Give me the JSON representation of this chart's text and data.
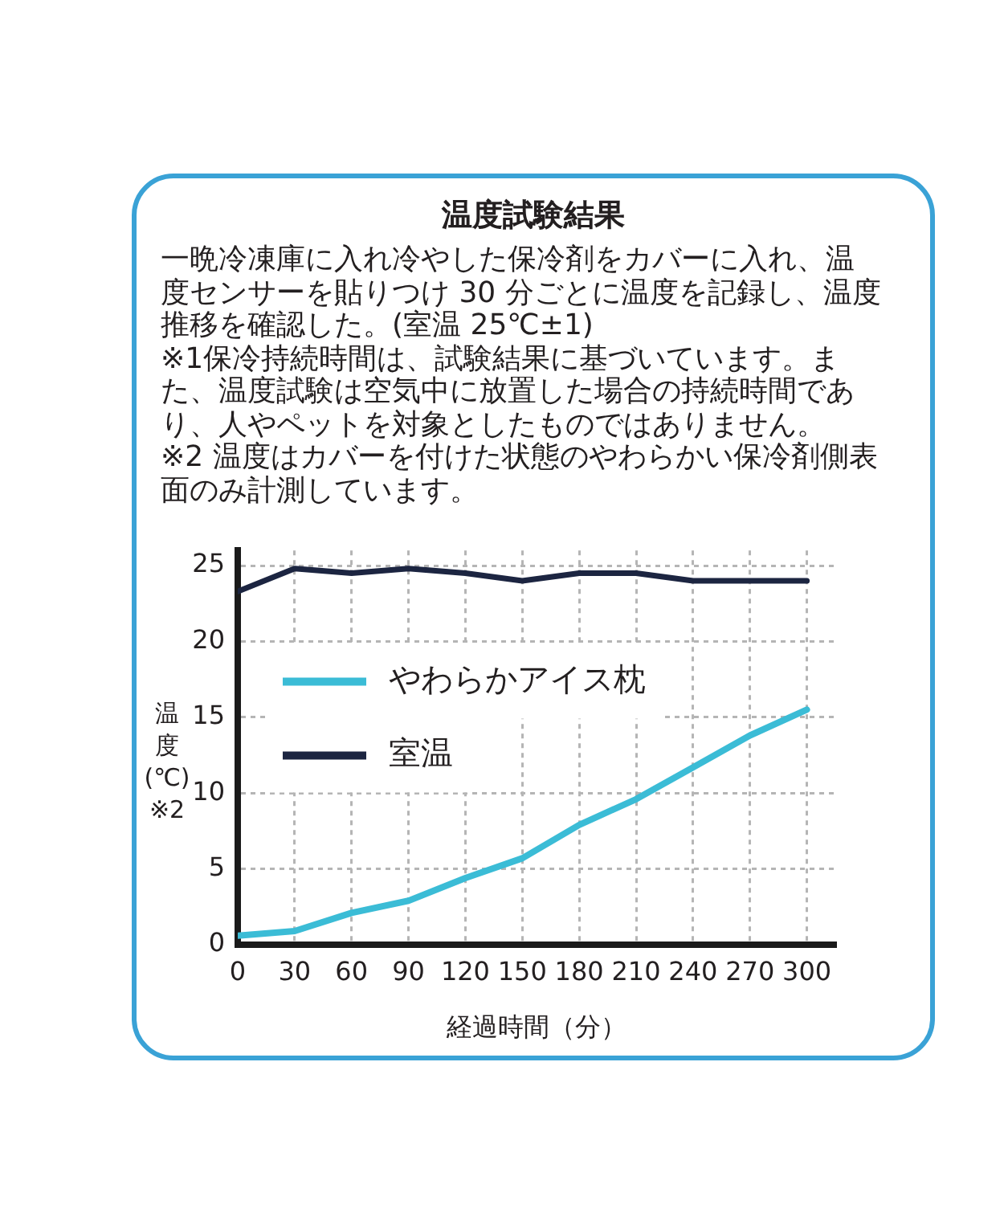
{
  "chart_data": {
    "type": "line",
    "title": "温度試験結果",
    "annotations": [
      "一晩冷凍庫に入れ冷やした保冷剤をカバーに入れ、温度センサーを貼りつけ 30 分ごとに温度を記録し、温度推移を確認した。(室温 25℃±1)",
      "※1保冷持続時間は、試験結果に基づいています。また、温度試験は空気中に放置した場合の持続時間であり、人やペットを対象としたものではありません。",
      "※2 温度はカバーを付けた状態のやわらかい保冷剤側表面のみ計測しています。"
    ],
    "xlabel": "経過時間（分）",
    "ylabel": "温度(℃)※2",
    "x": [
      0,
      30,
      60,
      90,
      120,
      150,
      180,
      210,
      240,
      270,
      300
    ],
    "series": [
      {
        "name": "やわらかアイス枕",
        "color": "#3bbcd6",
        "values": [
          0.6,
          0.9,
          2.1,
          2.9,
          4.4,
          5.7,
          7.9,
          9.6,
          11.7,
          13.8,
          15.5
        ]
      },
      {
        "name": "室温",
        "color": "#1c2541",
        "values": [
          23.3,
          24.8,
          24.5,
          24.8,
          24.5,
          24.0,
          24.5,
          24.5,
          24.0,
          24.0,
          24.0
        ]
      }
    ],
    "xlim": [
      0,
      315
    ],
    "xticks": [
      0,
      30,
      60,
      90,
      120,
      150,
      180,
      210,
      240,
      270,
      300
    ],
    "ylim": [
      0,
      26
    ],
    "yticks": [
      0,
      5,
      10,
      15,
      20,
      25
    ],
    "grid": true,
    "legend": "left",
    "marker": "none",
    "line_style": "solid"
  }
}
